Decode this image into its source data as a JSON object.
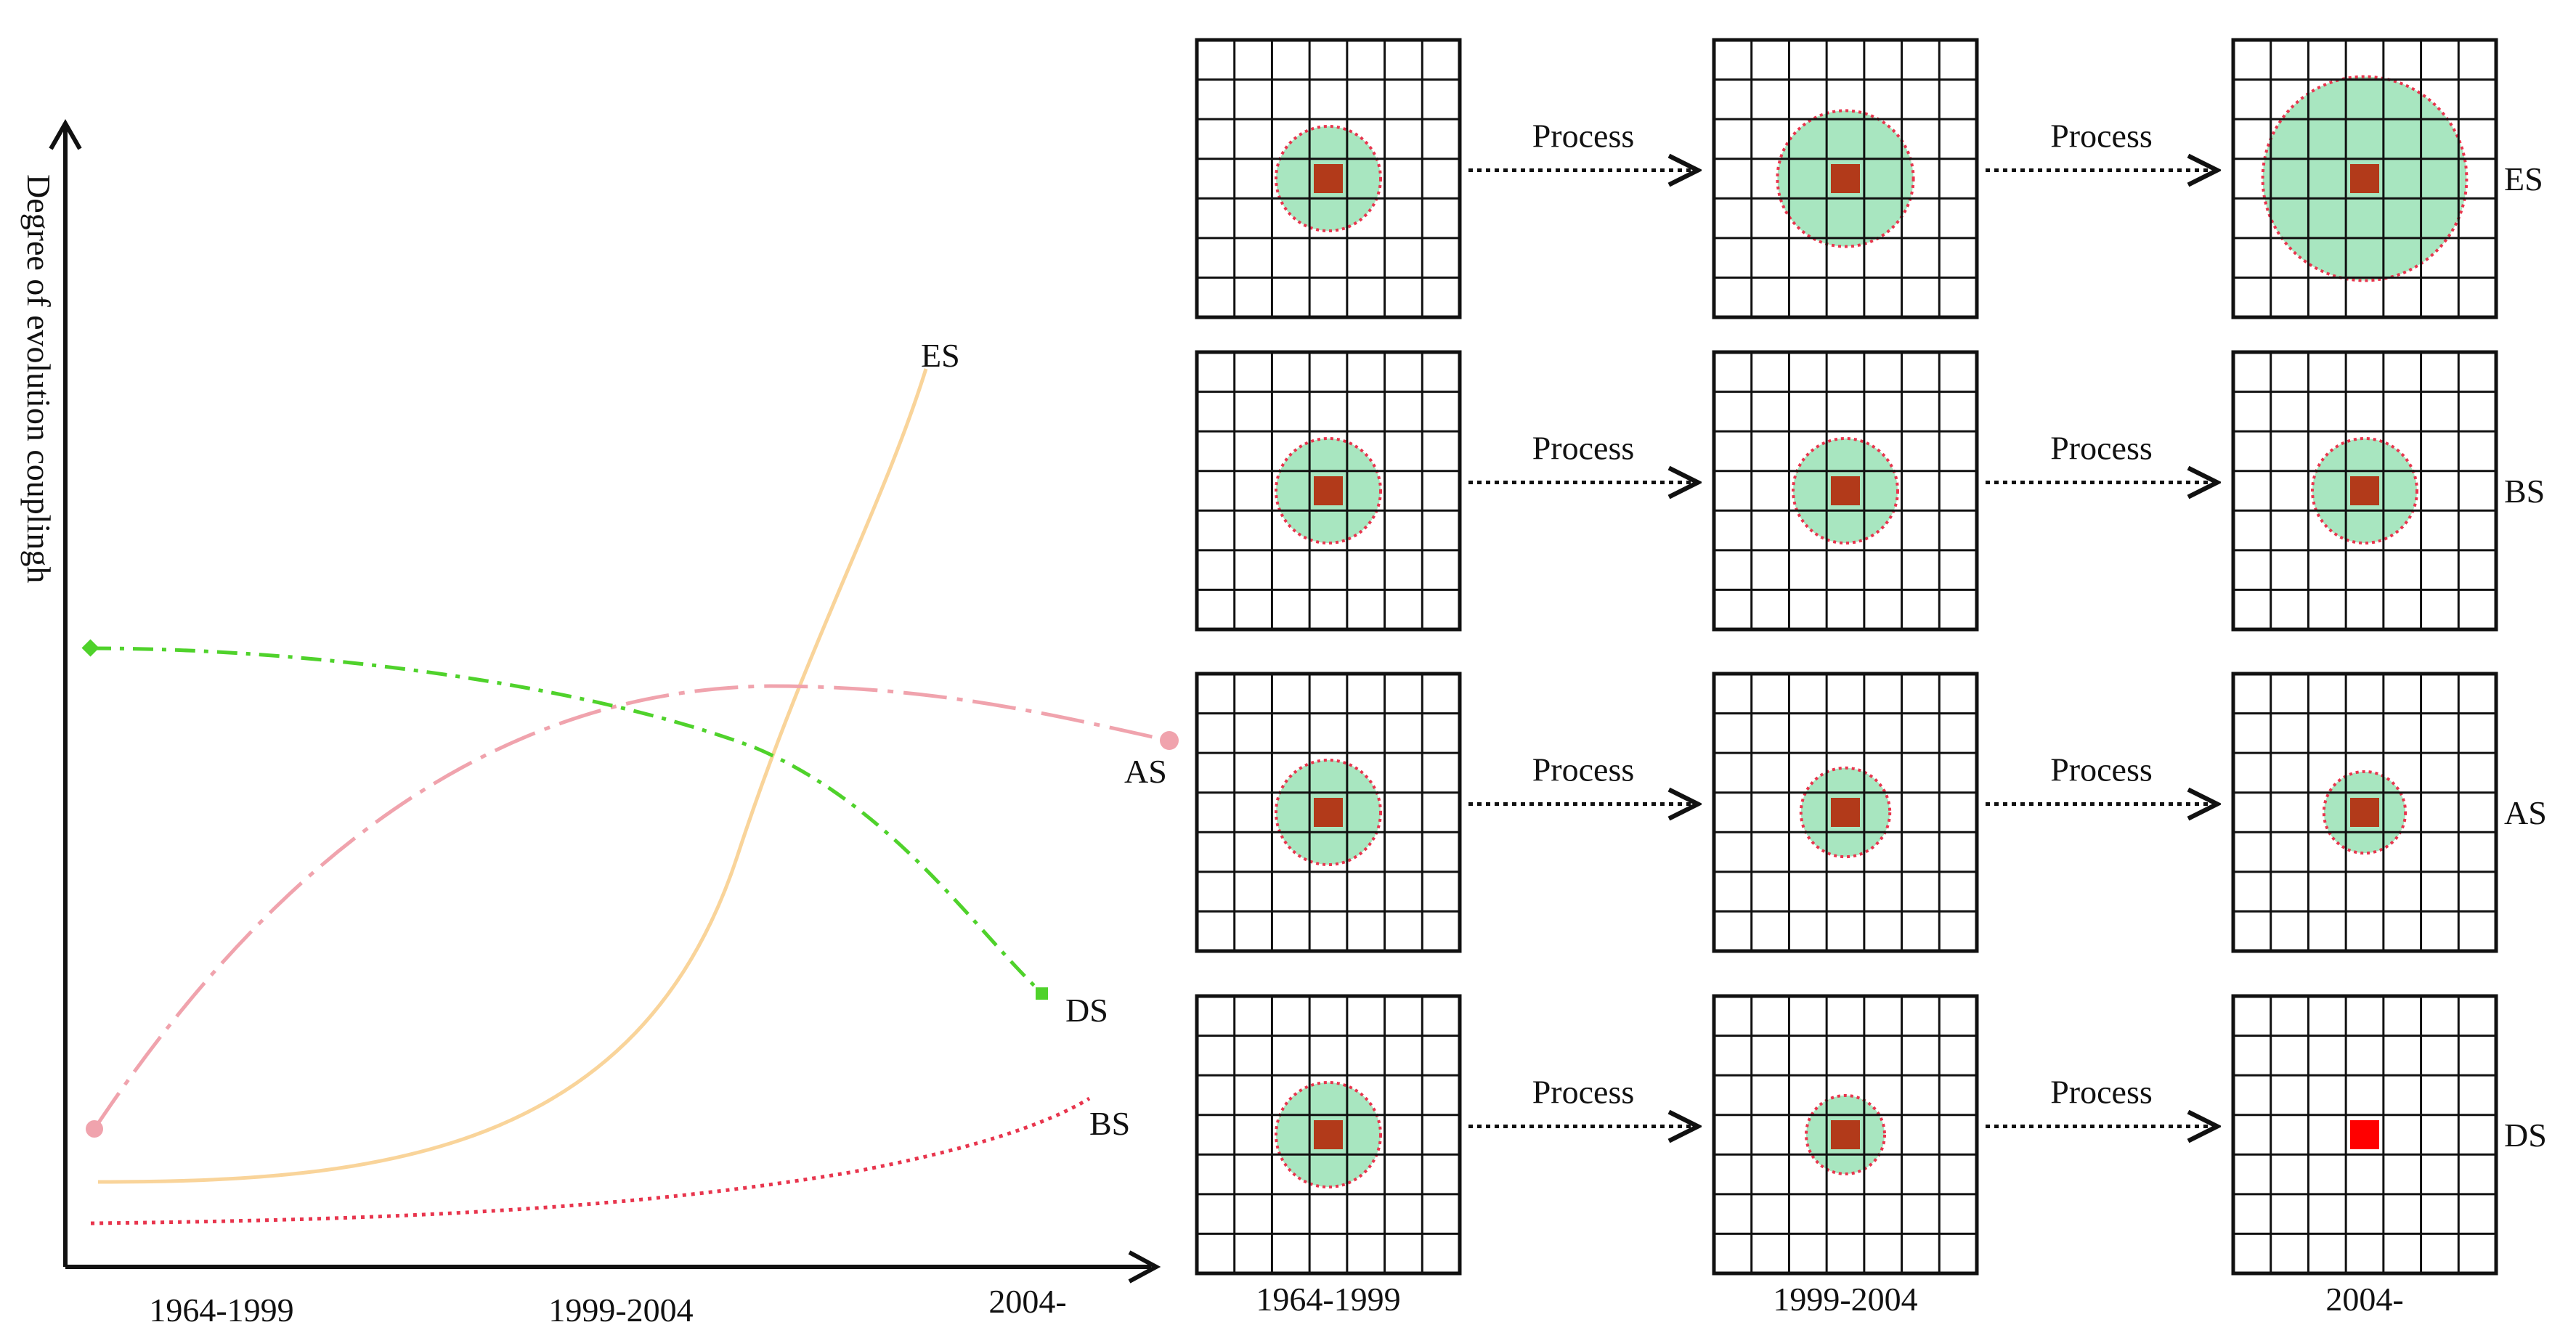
{
  "left_chart": {
    "y_axis_label": "Degree of evolution couplingh",
    "x_ticks": [
      "1964-1999",
      "1999-2004",
      "2004-"
    ],
    "series": [
      {
        "key": "ES",
        "label": "ES",
        "color": "#f9d49a",
        "style": "solid"
      },
      {
        "key": "AS",
        "label": "AS",
        "color": "#f0a3ad",
        "style": "dash-dot"
      },
      {
        "key": "DS",
        "label": "DS",
        "color": "#4fd22b",
        "style": "dash-dot"
      },
      {
        "key": "BS",
        "label": "BS",
        "color": "#e8354d",
        "style": "dotted"
      }
    ]
  },
  "right_diagram": {
    "process_label": "Process",
    "column_labels": [
      "1964-1999",
      "1999-2004",
      "2004-"
    ],
    "rows": [
      {
        "label": "ES",
        "circle_levels": [
          1.0,
          1.3,
          1.95
        ],
        "center_color": "#b23a1a"
      },
      {
        "label": "BS",
        "circle_levels": [
          1.0,
          1.0,
          1.0
        ],
        "center_color": "#b23a1a"
      },
      {
        "label": "AS",
        "circle_levels": [
          1.0,
          0.85,
          0.78
        ],
        "center_color": "#b23a1a"
      },
      {
        "label": "DS",
        "circle_levels": [
          1.0,
          0.75,
          0.0
        ],
        "center_color": "#b23a1a",
        "final_center_color": "#ff0000"
      }
    ],
    "circle_fill": "#a8e6c0",
    "circle_stroke": "#e8354d"
  }
}
